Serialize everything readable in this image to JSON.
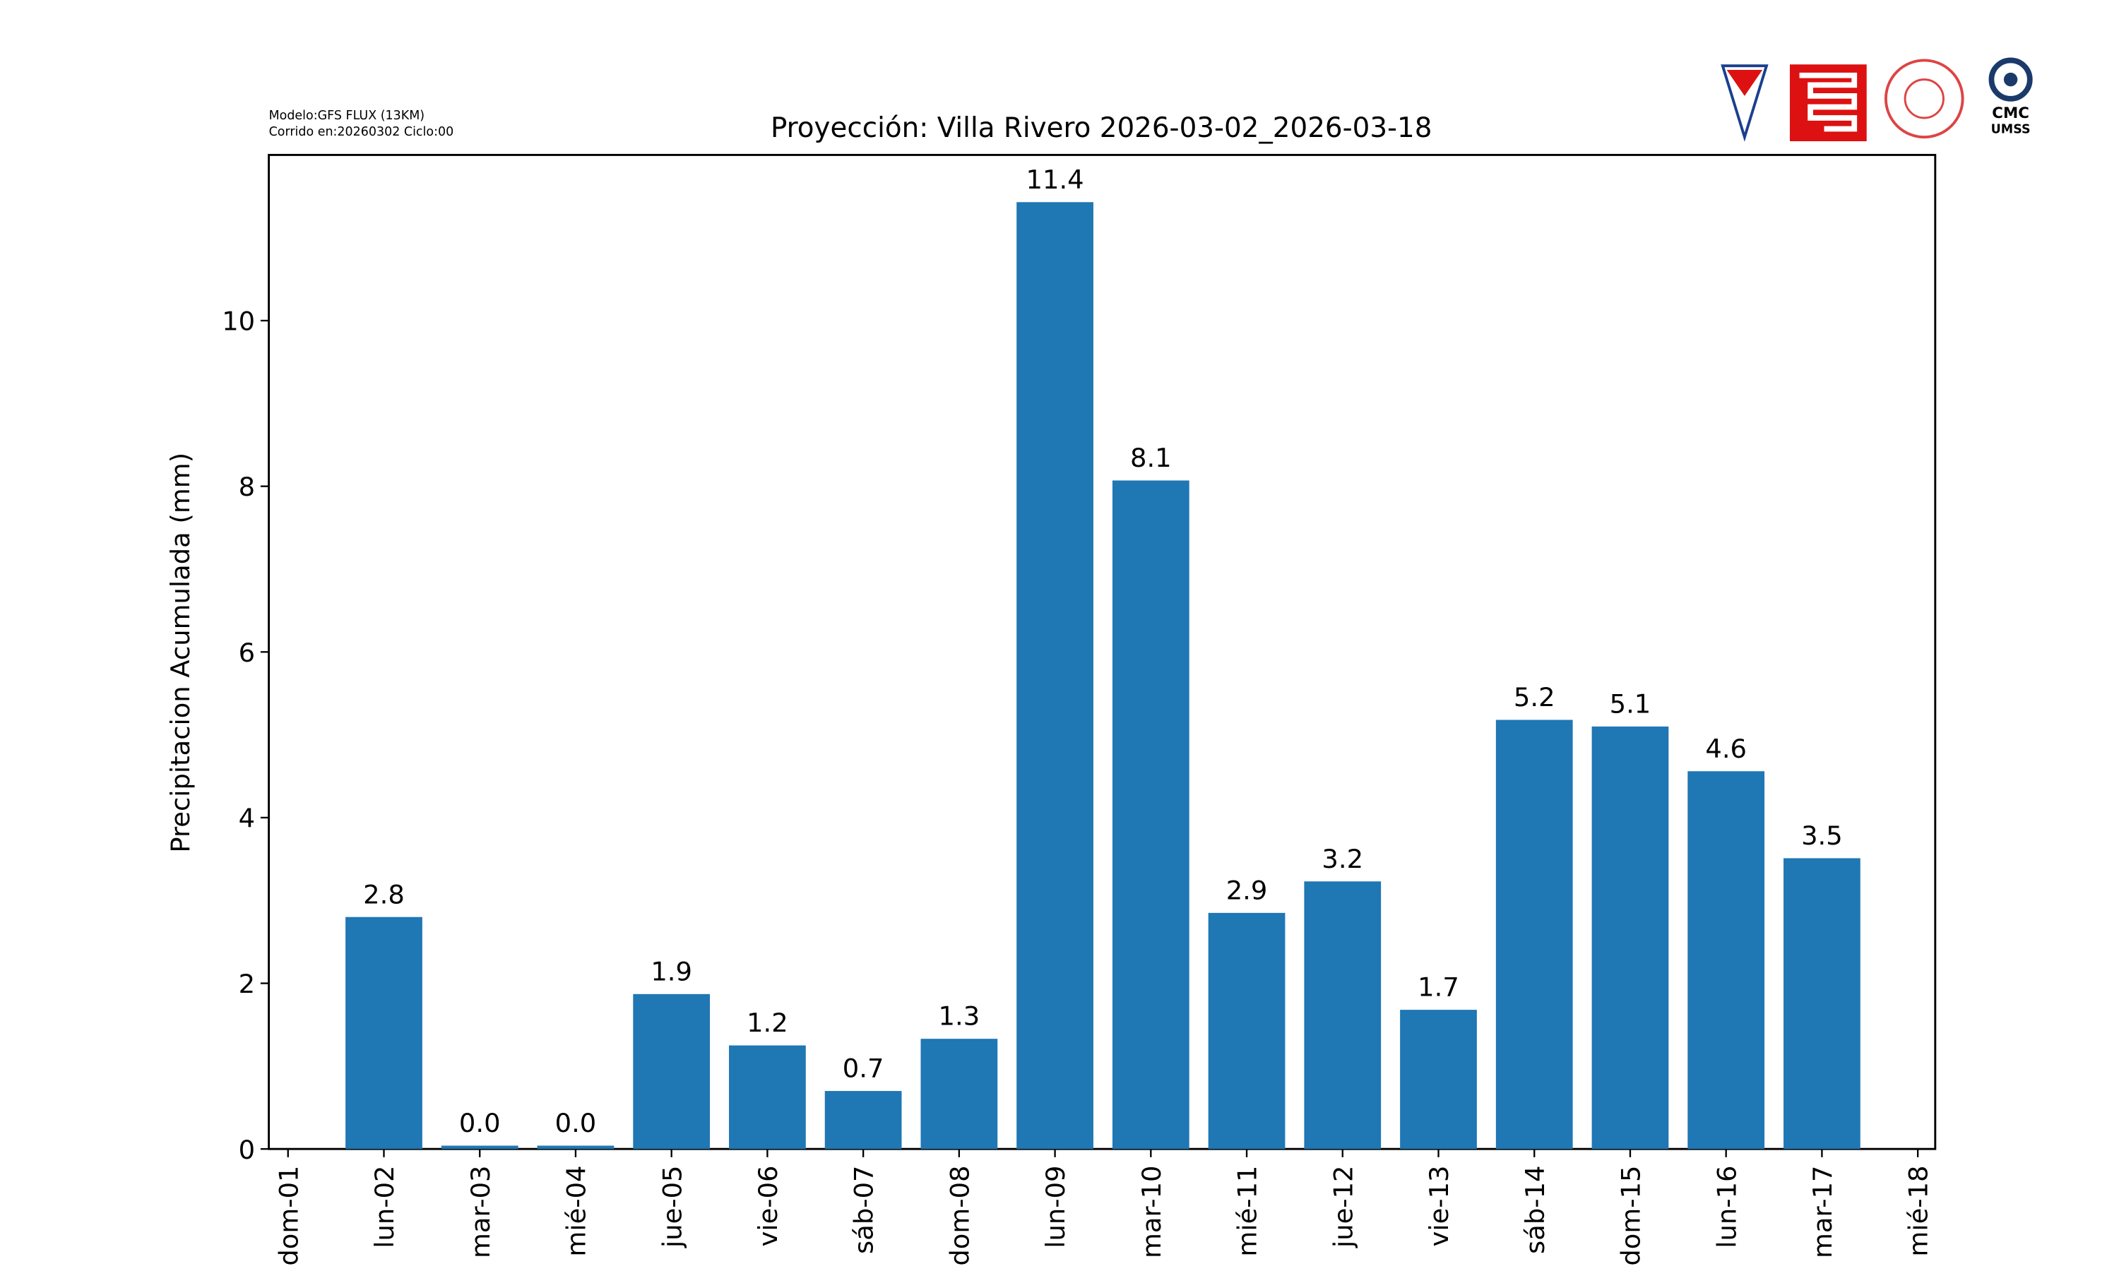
{
  "chart_data": {
    "type": "bar",
    "title": "Proyección: Villa Rivero  2026-03-02_2026-03-18",
    "model_note": [
      "Modelo:GFS FLUX (13KM)",
      "Corrido en:20260302 Ciclo:00"
    ],
    "logo_text": [
      "CMC",
      "UMSS"
    ],
    "ylabel": "Precipitacion Acumulada (mm)",
    "categories": [
      "dom-01",
      "lun-02",
      "mar-03",
      "mié-04",
      "jue-05",
      "vie-06",
      "sáb-07",
      "dom-08",
      "lun-09",
      "mar-10",
      "mié-11",
      "jue-12",
      "vie-13",
      "sáb-14",
      "dom-15",
      "lun-16",
      "mar-17",
      "mié-18"
    ],
    "values": [
      null,
      2.8,
      0.04,
      0.04,
      1.87,
      1.25,
      0.7,
      1.33,
      11.43,
      8.07,
      2.85,
      3.23,
      1.68,
      5.18,
      5.1,
      4.56,
      3.51,
      null
    ],
    "value_labels": [
      null,
      "2.8",
      "0.0",
      "0.0",
      "1.9",
      "1.2",
      "0.7",
      "1.3",
      "11.4",
      "8.1",
      "2.9",
      "3.2",
      "1.7",
      "5.2",
      "5.1",
      "4.6",
      "3.5",
      null
    ],
    "color": "#1f77b4",
    "ylim": [
      0,
      12.0
    ],
    "yticks": [
      0,
      2,
      4,
      6,
      8,
      10
    ]
  }
}
